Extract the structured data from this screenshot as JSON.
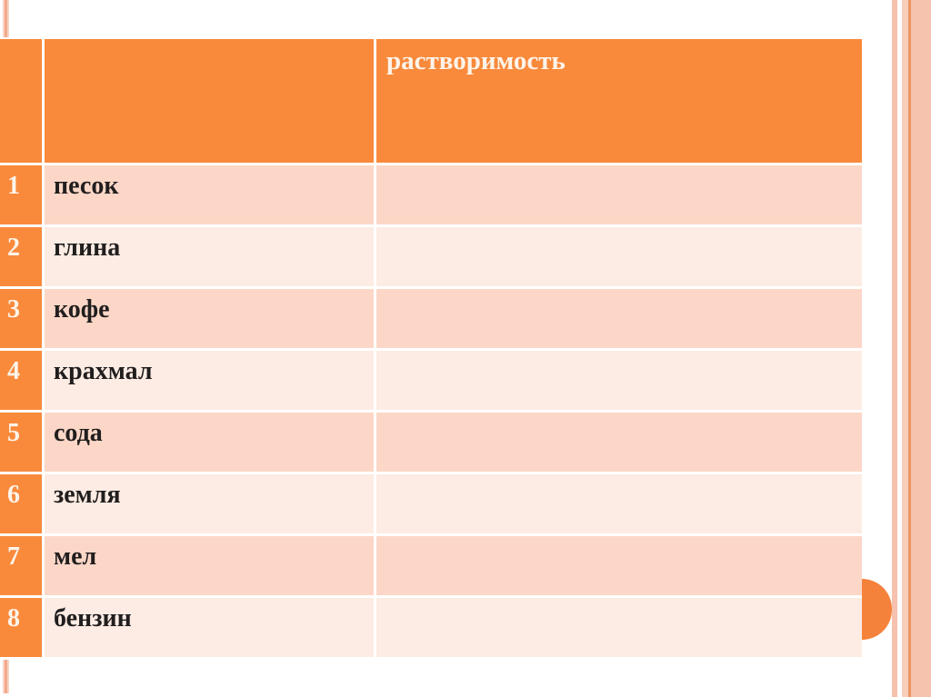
{
  "slide": {
    "background_color": "#ffffff",
    "accent_orange": "#f98a3c",
    "row_color_dark": "#fcd7c7",
    "row_color_light": "#fdece4",
    "stripe_salmon": "#f2a98b",
    "stripe_pink": "#f6c2ad",
    "stripe_line_orange": "#ec9565"
  },
  "table": {
    "header": {
      "number_label": "",
      "substance_label": "",
      "solubility_label": "растворимость"
    },
    "rows": [
      {
        "num": "1",
        "name": "песок",
        "solubility": ""
      },
      {
        "num": "2",
        "name": "глина",
        "solubility": ""
      },
      {
        "num": "3",
        "name": "кофе",
        "solubility": ""
      },
      {
        "num": "4",
        "name": "крахмал",
        "solubility": ""
      },
      {
        "num": "5",
        "name": "сода",
        "solubility": ""
      },
      {
        "num": "6",
        "name": "земля",
        "solubility": ""
      },
      {
        "num": "7",
        "name": "мел",
        "solubility": ""
      },
      {
        "num": "8",
        "name": "бензин",
        "solubility": ""
      }
    ]
  }
}
